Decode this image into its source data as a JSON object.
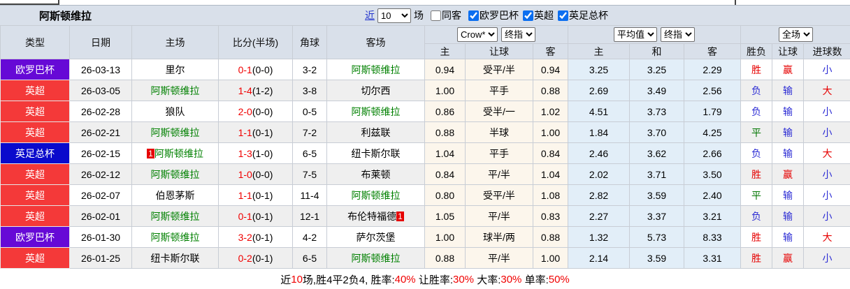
{
  "toolbar": {
    "title": "阿斯顿维拉",
    "recent_link": "近",
    "recent_count": "10",
    "recent_suffix": "场",
    "same_venue": {
      "label": "同客",
      "checked": false
    },
    "filters": [
      {
        "label": "欧罗巴杯",
        "checked": true
      },
      {
        "label": "英超",
        "checked": true
      },
      {
        "label": "英足总杯",
        "checked": true
      }
    ]
  },
  "colors": {
    "europa": "#6609d6",
    "league": "#f43939",
    "cup": "#0a0acc",
    "accent_red": "#e60000",
    "accent_green": "#007500",
    "accent_blue": "#2b2bd4",
    "self_team_green": "#008000"
  },
  "table": {
    "left_headers": [
      "类型",
      "日期",
      "主场",
      "比分(半场)",
      "角球",
      "客场"
    ],
    "group1": {
      "select_a": "Crow*",
      "select_b": "终指",
      "cols": [
        "主",
        "让球",
        "客"
      ]
    },
    "group2": {
      "select_a": "平均值",
      "select_b": "终指",
      "cols": [
        "主",
        "和",
        "客"
      ]
    },
    "group3": {
      "select": "全场",
      "cols": [
        "胜负",
        "让球",
        "进球数"
      ]
    },
    "rows": [
      {
        "type": "欧罗巴杯",
        "type_key": "europa",
        "date": "26-03-13",
        "home": "里尔",
        "home_self": false,
        "home_redcard": false,
        "score_ft": "0-1",
        "score_ht": "(0-0)",
        "corner": "3-2",
        "away": "阿斯顿维拉",
        "away_self": true,
        "away_redcard": false,
        "odds": [
          "0.94",
          "受平/半",
          "0.94"
        ],
        "avg": [
          "3.25",
          "3.25",
          "2.29"
        ],
        "results": [
          {
            "t": "胜",
            "c": "t-red"
          },
          {
            "t": "赢",
            "c": "t-red"
          },
          {
            "t": "小",
            "c": "t-blue"
          }
        ]
      },
      {
        "type": "英超",
        "type_key": "league",
        "date": "26-03-05",
        "home": "阿斯顿维拉",
        "home_self": true,
        "home_redcard": false,
        "score_ft": "1-4",
        "score_ht": "(1-2)",
        "corner": "3-8",
        "away": "切尔西",
        "away_self": false,
        "away_redcard": false,
        "odds": [
          "1.00",
          "平手",
          "0.88"
        ],
        "avg": [
          "2.69",
          "3.49",
          "2.56"
        ],
        "results": [
          {
            "t": "负",
            "c": "t-blue"
          },
          {
            "t": "输",
            "c": "t-blue"
          },
          {
            "t": "大",
            "c": "t-red"
          }
        ]
      },
      {
        "type": "英超",
        "type_key": "league",
        "date": "26-02-28",
        "home": "狼队",
        "home_self": false,
        "home_redcard": false,
        "score_ft": "2-0",
        "score_ht": "(0-0)",
        "corner": "0-5",
        "away": "阿斯顿维拉",
        "away_self": true,
        "away_redcard": false,
        "odds": [
          "0.86",
          "受半/一",
          "1.02"
        ],
        "avg": [
          "4.51",
          "3.73",
          "1.79"
        ],
        "results": [
          {
            "t": "负",
            "c": "t-blue"
          },
          {
            "t": "输",
            "c": "t-blue"
          },
          {
            "t": "小",
            "c": "t-blue"
          }
        ]
      },
      {
        "type": "英超",
        "type_key": "league",
        "date": "26-02-21",
        "home": "阿斯顿维拉",
        "home_self": true,
        "home_redcard": false,
        "score_ft": "1-1",
        "score_ht": "(0-1)",
        "corner": "7-2",
        "away": "利兹联",
        "away_self": false,
        "away_redcard": false,
        "odds": [
          "0.88",
          "半球",
          "1.00"
        ],
        "avg": [
          "1.84",
          "3.70",
          "4.25"
        ],
        "results": [
          {
            "t": "平",
            "c": "t-green"
          },
          {
            "t": "输",
            "c": "t-blue"
          },
          {
            "t": "小",
            "c": "t-blue"
          }
        ]
      },
      {
        "type": "英足总杯",
        "type_key": "cup",
        "date": "26-02-15",
        "home": "阿斯顿维拉",
        "home_self": true,
        "home_redcard": true,
        "score_ft": "1-3",
        "score_ht": "(1-0)",
        "corner": "6-5",
        "away": "纽卡斯尔联",
        "away_self": false,
        "away_redcard": false,
        "odds": [
          "1.04",
          "平手",
          "0.84"
        ],
        "avg": [
          "2.46",
          "3.62",
          "2.66"
        ],
        "results": [
          {
            "t": "负",
            "c": "t-blue"
          },
          {
            "t": "输",
            "c": "t-blue"
          },
          {
            "t": "大",
            "c": "t-red"
          }
        ]
      },
      {
        "type": "英超",
        "type_key": "league",
        "date": "26-02-12",
        "home": "阿斯顿维拉",
        "home_self": true,
        "home_redcard": false,
        "score_ft": "1-0",
        "score_ht": "(0-0)",
        "corner": "7-5",
        "away": "布莱顿",
        "away_self": false,
        "away_redcard": false,
        "odds": [
          "0.84",
          "平/半",
          "1.04"
        ],
        "avg": [
          "2.02",
          "3.71",
          "3.50"
        ],
        "results": [
          {
            "t": "胜",
            "c": "t-red"
          },
          {
            "t": "赢",
            "c": "t-red"
          },
          {
            "t": "小",
            "c": "t-blue"
          }
        ]
      },
      {
        "type": "英超",
        "type_key": "league",
        "date": "26-02-07",
        "home": "伯恩茅斯",
        "home_self": false,
        "home_redcard": false,
        "score_ft": "1-1",
        "score_ht": "(0-1)",
        "corner": "11-4",
        "away": "阿斯顿维拉",
        "away_self": true,
        "away_redcard": false,
        "odds": [
          "0.80",
          "受平/半",
          "1.08"
        ],
        "avg": [
          "2.82",
          "3.59",
          "2.40"
        ],
        "results": [
          {
            "t": "平",
            "c": "t-green"
          },
          {
            "t": "输",
            "c": "t-blue"
          },
          {
            "t": "小",
            "c": "t-blue"
          }
        ]
      },
      {
        "type": "英超",
        "type_key": "league",
        "date": "26-02-01",
        "home": "阿斯顿维拉",
        "home_self": true,
        "home_redcard": false,
        "score_ft": "0-1",
        "score_ht": "(0-1)",
        "corner": "12-1",
        "away": "布伦特福德",
        "away_self": false,
        "away_redcard": true,
        "odds": [
          "1.05",
          "平/半",
          "0.83"
        ],
        "avg": [
          "2.27",
          "3.37",
          "3.21"
        ],
        "results": [
          {
            "t": "负",
            "c": "t-blue"
          },
          {
            "t": "输",
            "c": "t-blue"
          },
          {
            "t": "小",
            "c": "t-blue"
          }
        ]
      },
      {
        "type": "欧罗巴杯",
        "type_key": "europa",
        "date": "26-01-30",
        "home": "阿斯顿维拉",
        "home_self": true,
        "home_redcard": false,
        "score_ft": "3-2",
        "score_ht": "(0-1)",
        "corner": "4-2",
        "away": "萨尔茨堡",
        "away_self": false,
        "away_redcard": false,
        "odds": [
          "1.00",
          "球半/两",
          "0.88"
        ],
        "avg": [
          "1.32",
          "5.73",
          "8.33"
        ],
        "results": [
          {
            "t": "胜",
            "c": "t-red"
          },
          {
            "t": "输",
            "c": "t-blue"
          },
          {
            "t": "大",
            "c": "t-red"
          }
        ]
      },
      {
        "type": "英超",
        "type_key": "league",
        "date": "26-01-25",
        "home": "纽卡斯尔联",
        "home_self": false,
        "home_redcard": false,
        "score_ft": "0-2",
        "score_ht": "(0-1)",
        "corner": "6-5",
        "away": "阿斯顿维拉",
        "away_self": true,
        "away_redcard": false,
        "odds": [
          "0.88",
          "平/半",
          "1.00"
        ],
        "avg": [
          "2.14",
          "3.59",
          "3.31"
        ],
        "results": [
          {
            "t": "胜",
            "c": "t-red"
          },
          {
            "t": "赢",
            "c": "t-red"
          },
          {
            "t": "小",
            "c": "t-blue"
          }
        ]
      }
    ]
  },
  "footer": {
    "segments": [
      {
        "text": "近",
        "red": false
      },
      {
        "text": "10",
        "red": true
      },
      {
        "text": "场,胜4平2负4, 胜率:",
        "red": false
      },
      {
        "text": "40%",
        "red": true
      },
      {
        "text": " 让胜率:",
        "red": false
      },
      {
        "text": "30%",
        "red": true
      },
      {
        "text": " 大率:",
        "red": false
      },
      {
        "text": "30%",
        "red": true
      },
      {
        "text": " 单率:",
        "red": false
      },
      {
        "text": "50%",
        "red": true
      }
    ]
  }
}
